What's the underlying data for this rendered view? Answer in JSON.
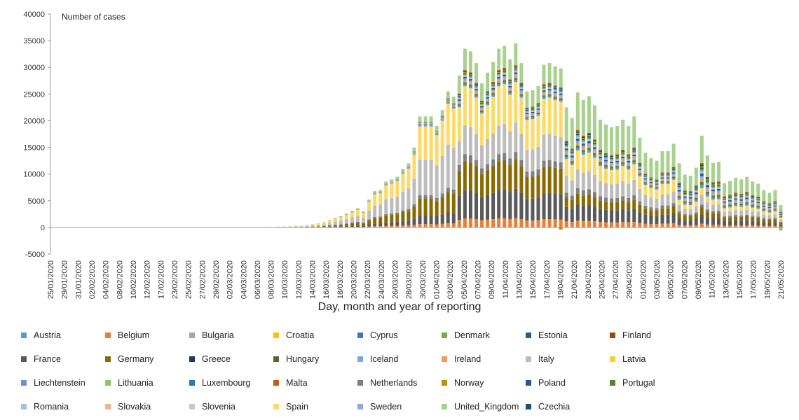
{
  "chart_data": {
    "type": "bar",
    "stacked": true,
    "ylabel": "Number of cases",
    "xlabel": "Day, month and year of reporting",
    "ylim": [
      -5000,
      40000
    ],
    "yticks": [
      -5000,
      0,
      5000,
      10000,
      15000,
      20000,
      25000,
      30000,
      35000,
      40000
    ],
    "legend_position": "bottom",
    "grid": false,
    "x_tick_labels": [
      "25/01/2020",
      "29/01/2020",
      "31/01/2020",
      "02/02/2020",
      "04/02/2020",
      "08/02/2020",
      "10/02/2020",
      "12/02/2020",
      "17/02/2020",
      "23/02/2020",
      "25/02/2020",
      "27/02/2020",
      "29/02/2020",
      "02/03/2020",
      "04/03/2020",
      "06/03/2020",
      "08/03/2020",
      "10/03/2020",
      "12/03/2020",
      "14/03/2020",
      "16/03/2020",
      "18/03/2020",
      "20/03/2020",
      "22/03/2020",
      "24/03/2020",
      "26/03/2020",
      "28/03/2020",
      "30/03/2020",
      "01/04/2020",
      "03/04/2020",
      "05/04/2020",
      "07/04/2020",
      "09/04/2020",
      "11/04/2020",
      "13/04/2020",
      "15/04/2020",
      "17/04/2020",
      "19/04/2020",
      "21/04/2020",
      "23/04/2020",
      "25/04/2020",
      "27/04/2020",
      "29/04/2020",
      "01/05/2020",
      "03/05/2020",
      "05/05/2020",
      "07/05/2020",
      "09/05/2020",
      "11/05/2020",
      "13/05/2020",
      "15/05/2020",
      "17/05/2020",
      "19/05/2020",
      "21/05/2020"
    ],
    "series": [
      {
        "name": "Austria",
        "color": "#4e9dd9"
      },
      {
        "name": "Belgium",
        "color": "#ed7d31"
      },
      {
        "name": "Bulgaria",
        "color": "#a5a5a5"
      },
      {
        "name": "Croatia",
        "color": "#ffc000"
      },
      {
        "name": "Cyprus",
        "color": "#4472c4"
      },
      {
        "name": "Denmark",
        "color": "#70ad47"
      },
      {
        "name": "Estonia",
        "color": "#255e91"
      },
      {
        "name": "Finland",
        "color": "#9e480e"
      },
      {
        "name": "France",
        "color": "#595959"
      },
      {
        "name": "Germany",
        "color": "#8a6a00"
      },
      {
        "name": "Greece",
        "color": "#203864"
      },
      {
        "name": "Hungary",
        "color": "#4b6d2f"
      },
      {
        "name": "Iceland",
        "color": "#75a9e0"
      },
      {
        "name": "Ireland",
        "color": "#f19a5e"
      },
      {
        "name": "Italy",
        "color": "#bdbdbd"
      },
      {
        "name": "Latvia",
        "color": "#ffcd33"
      },
      {
        "name": "Liechtenstein",
        "color": "#6f8fd1"
      },
      {
        "name": "Lithuania",
        "color": "#8fc46a"
      },
      {
        "name": "Luxembourg",
        "color": "#2e75b6"
      },
      {
        "name": "Malta",
        "color": "#c55a11"
      },
      {
        "name": "Netherlands",
        "color": "#7f7f7f"
      },
      {
        "name": "Norway",
        "color": "#bf9000"
      },
      {
        "name": "Poland",
        "color": "#2f5597"
      },
      {
        "name": "Portugal",
        "color": "#548235"
      },
      {
        "name": "Romania",
        "color": "#9dc3e6"
      },
      {
        "name": "Slovakia",
        "color": "#f4b183"
      },
      {
        "name": "Slovenia",
        "color": "#c9c9c9"
      },
      {
        "name": "Spain",
        "color": "#ffd966"
      },
      {
        "name": "Sweden",
        "color": "#8faadc"
      },
      {
        "name": "United_Kingdom",
        "color": "#a9d18e"
      },
      {
        "name": "Czechia",
        "color": "#1f4e79"
      }
    ],
    "daily_totals": [
      0,
      0,
      0,
      0,
      0,
      0,
      0,
      0,
      0,
      0,
      0,
      0,
      0,
      0,
      0,
      0,
      0,
      0,
      0,
      0,
      0,
      0,
      0,
      0,
      0,
      0,
      0,
      0,
      0,
      0,
      0,
      0,
      0,
      0,
      0,
      0,
      0,
      0,
      50,
      100,
      150,
      150,
      250,
      300,
      350,
      450,
      600,
      750,
      1000,
      1400,
      1800,
      2100,
      2600,
      3100,
      3600,
      3000,
      5200,
      6800,
      7000,
      8600,
      9000,
      9500,
      11000,
      12000,
      15000,
      20800,
      20800,
      20800,
      19000,
      22000,
      25500,
      24500,
      28500,
      33500,
      33000,
      30800,
      27000,
      29000,
      31000,
      33500,
      34000,
      31500,
      34500,
      30800,
      25500,
      25700,
      26500,
      30500,
      30800,
      30200,
      29800,
      22500,
      20500,
      25300,
      23900,
      24600,
      22900,
      20200,
      19300,
      18800,
      19000,
      20200,
      19000,
      20800,
      16800,
      14000,
      13000,
      12500,
      14300,
      14300,
      15700,
      12000,
      9900,
      9700,
      11200,
      17200,
      13500,
      12100,
      12300,
      8300,
      8700,
      9300,
      9000,
      9500,
      8600,
      8200,
      7000,
      6500,
      7000,
      4200
    ],
    "lithuania_negative_day": {
      "x_label": "21/05/2020",
      "value": -600
    },
    "norway_negative_day": {
      "x_label": "19/04/2020",
      "value": -400
    }
  }
}
